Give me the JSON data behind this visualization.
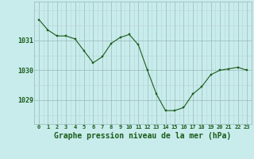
{
  "x": [
    0,
    1,
    2,
    3,
    4,
    5,
    6,
    7,
    8,
    9,
    10,
    11,
    12,
    13,
    14,
    15,
    16,
    17,
    18,
    19,
    20,
    21,
    22,
    23
  ],
  "y": [
    1031.7,
    1031.35,
    1031.15,
    1031.15,
    1031.05,
    1030.65,
    1030.25,
    1030.45,
    1030.9,
    1031.1,
    1031.2,
    1030.85,
    1030.0,
    1029.2,
    1028.65,
    1028.65,
    1028.75,
    1029.2,
    1029.45,
    1029.85,
    1030.0,
    1030.05,
    1030.1,
    1030.0
  ],
  "line_color": "#1a5c1a",
  "marker_color": "#1a5c1a",
  "bg_color": "#c8ecec",
  "grid_color_major": "#9ab8b8",
  "grid_color_minor": "#b8d4d4",
  "xlabel": "Graphe pression niveau de la mer (hPa)",
  "xlabel_fontsize": 7,
  "xtick_labels": [
    "0",
    "1",
    "2",
    "3",
    "4",
    "5",
    "6",
    "7",
    "8",
    "9",
    "10",
    "11",
    "12",
    "13",
    "14",
    "15",
    "16",
    "17",
    "18",
    "19",
    "20",
    "21",
    "22",
    "23"
  ],
  "ytick_values": [
    1029,
    1030,
    1031
  ],
  "ylim": [
    1028.2,
    1032.3
  ],
  "xlim": [
    -0.5,
    23.5
  ],
  "label_color": "#1a5c1a"
}
